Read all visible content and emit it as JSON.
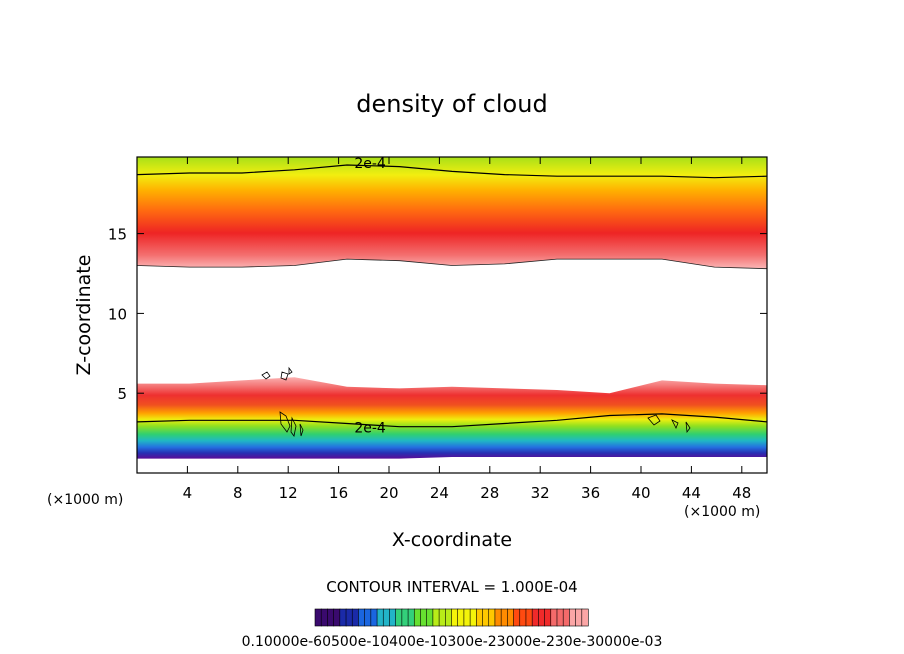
{
  "chart_data": {
    "type": "contour",
    "title": "density of cloud",
    "xlabel": "X-coordinate",
    "ylabel": "Z-coordinate",
    "x_unit": "(×1000 m)",
    "y_unit": "(×1000 m)",
    "xlim": [
      0,
      50
    ],
    "ylim": [
      0,
      19.8
    ],
    "x_ticks": [
      4,
      8,
      12,
      16,
      20,
      24,
      28,
      32,
      36,
      40,
      44,
      48
    ],
    "y_ticks": [
      5,
      10,
      15
    ],
    "contour_interval_label": "CONTOUR INTERVAL = 1.000E-04",
    "contour_labels": [
      "2e-4",
      "2e-4"
    ],
    "colorbar_label": "0.10000e-60500e-10400e-10300e-23000e-230e-30000e-03",
    "colorbar_colors": [
      "#3a0a6e",
      "#1a2aa8",
      "#1a66e0",
      "#22b4c8",
      "#33d07a",
      "#66e030",
      "#b8ec18",
      "#f4f40a",
      "#ffc800",
      "#ff8c00",
      "#ff4a10",
      "#f02a2a",
      "#f46a6a",
      "#fba6a6"
    ],
    "upper_layer": {
      "z_base": [
        13.0,
        12.9,
        12.9,
        13.0,
        13.4,
        13.3,
        13.0,
        13.1,
        13.4,
        13.4,
        13.4,
        12.9,
        12.8
      ],
      "z_top": [
        19.8,
        19.8,
        19.8,
        19.8,
        19.8,
        19.8,
        19.8,
        19.8,
        19.8,
        19.8,
        19.8,
        19.8,
        19.8
      ],
      "z_peak": 15.2,
      "contour_2e-4": [
        18.7,
        18.8,
        18.8,
        19.0,
        19.3,
        19.2,
        18.9,
        18.7,
        18.6,
        18.6,
        18.6,
        18.5,
        18.6
      ]
    },
    "lower_layer": {
      "z_base": [
        0.9,
        0.9,
        0.9,
        0.9,
        0.9,
        0.9,
        1.0,
        1.0,
        1.0,
        1.0,
        1.0,
        1.0,
        1.0
      ],
      "z_top": [
        5.6,
        5.6,
        5.8,
        6.0,
        5.4,
        5.3,
        5.4,
        5.3,
        5.2,
        5.0,
        5.8,
        5.6,
        5.5
      ],
      "z_peak": 4.4,
      "contour_2e-4": [
        3.2,
        3.3,
        3.3,
        3.3,
        3.1,
        2.9,
        2.9,
        3.1,
        3.3,
        3.6,
        3.7,
        3.5,
        3.2
      ]
    },
    "x_profile": [
      0,
      4.17,
      8.33,
      12.5,
      16.67,
      20.83,
      25,
      29.17,
      33.33,
      37.5,
      41.67,
      45.83,
      50
    ]
  }
}
